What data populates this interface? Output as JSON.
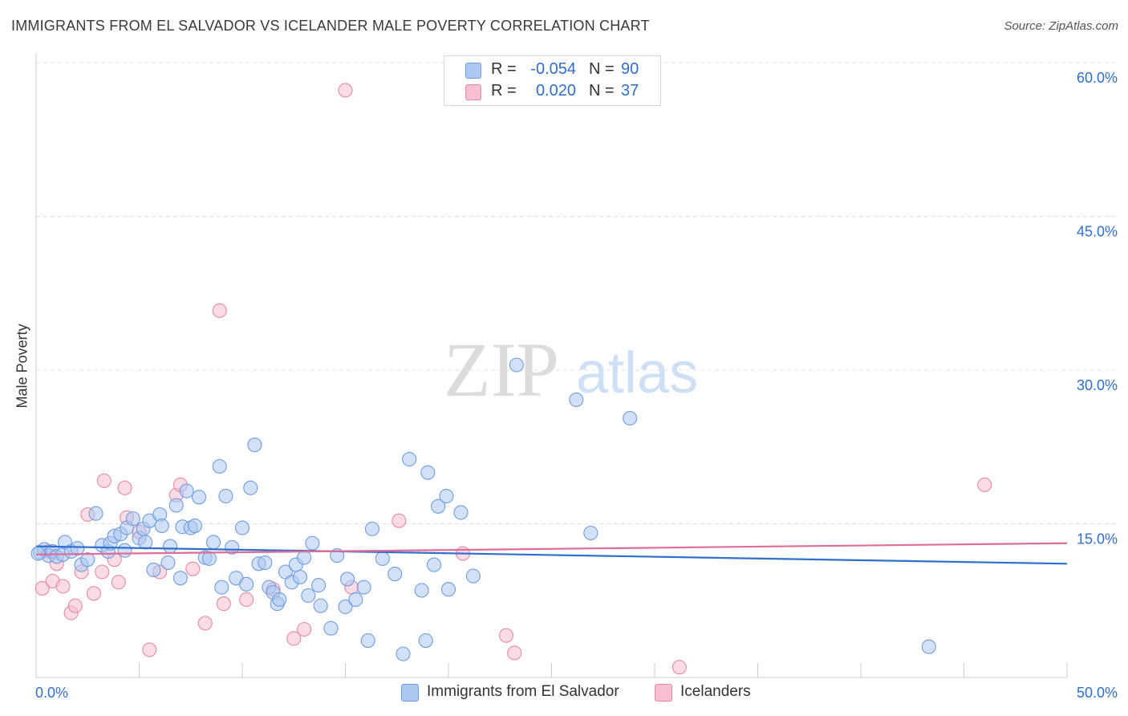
{
  "title": "IMMIGRANTS FROM EL SALVADOR VS ICELANDER MALE POVERTY CORRELATION CHART",
  "source": "Source: ZipAtlas.com",
  "watermark": {
    "zip": "ZIP",
    "atlas": "atlas"
  },
  "legend": {
    "r_label": "R =",
    "n_label": "N =",
    "series": [
      {
        "r": "-0.054",
        "n": "90",
        "fill": "#adc9f0",
        "stroke": "#6f9de0"
      },
      {
        "r": "0.020",
        "n": "37",
        "fill": "#f7bfd0",
        "stroke": "#e58aa8"
      }
    ]
  },
  "bottom_legend": [
    "Immigrants from El Salvador",
    "Icelanders"
  ],
  "chart_data": {
    "type": "scatter",
    "title": "IMMIGRANTS FROM EL SALVADOR VS ICELANDER MALE POVERTY CORRELATION CHART",
    "xlabel": "",
    "ylabel": "Male Poverty",
    "xlim": [
      0,
      50
    ],
    "ylim": [
      0,
      60
    ],
    "x_tick_labels": [
      "0.0%",
      "50.0%"
    ],
    "y_tick_labels": [
      "15.0%",
      "30.0%",
      "45.0%",
      "60.0%"
    ],
    "y_ticks": [
      15,
      30,
      45,
      60
    ],
    "grid": true,
    "colors": {
      "blue": "#2f6fd0",
      "pink": "#e06c97",
      "blue_fill": "#adc9f0",
      "pink_fill": "#f7bfd0"
    },
    "series": [
      {
        "name": "Immigrants from El Salvador",
        "trend": [
          [
            0,
            12.8
          ],
          [
            50,
            11.1
          ]
        ],
        "points": [
          [
            0.2,
            12.2
          ],
          [
            0.4,
            12.5
          ],
          [
            0.6,
            11.9
          ],
          [
            0.8,
            12.3
          ],
          [
            1.0,
            11.8
          ],
          [
            1.3,
            12.0
          ],
          [
            1.4,
            13.2
          ],
          [
            1.7,
            12.3
          ],
          [
            2.0,
            12.6
          ],
          [
            2.2,
            11.0
          ],
          [
            2.5,
            11.5
          ],
          [
            2.9,
            16.0
          ],
          [
            3.2,
            12.9
          ],
          [
            3.5,
            12.3
          ],
          [
            3.6,
            13.1
          ],
          [
            3.8,
            13.8
          ],
          [
            4.1,
            14.0
          ],
          [
            4.3,
            12.4
          ],
          [
            4.4,
            14.6
          ],
          [
            4.7,
            15.5
          ],
          [
            5.0,
            13.6
          ],
          [
            5.2,
            14.5
          ],
          [
            5.3,
            13.2
          ],
          [
            5.5,
            15.3
          ],
          [
            5.7,
            10.5
          ],
          [
            6.0,
            15.9
          ],
          [
            6.1,
            14.8
          ],
          [
            6.4,
            11.2
          ],
          [
            6.5,
            12.8
          ],
          [
            6.8,
            16.8
          ],
          [
            7.0,
            9.7
          ],
          [
            7.1,
            14.7
          ],
          [
            7.3,
            18.2
          ],
          [
            7.5,
            14.6
          ],
          [
            7.7,
            14.8
          ],
          [
            7.9,
            17.6
          ],
          [
            8.2,
            11.7
          ],
          [
            8.4,
            11.6
          ],
          [
            8.6,
            13.2
          ],
          [
            8.9,
            20.6
          ],
          [
            9.0,
            8.8
          ],
          [
            9.2,
            17.7
          ],
          [
            9.5,
            12.7
          ],
          [
            9.7,
            9.7
          ],
          [
            10.0,
            14.6
          ],
          [
            10.2,
            9.1
          ],
          [
            10.4,
            18.5
          ],
          [
            10.6,
            22.7
          ],
          [
            10.8,
            11.1
          ],
          [
            11.1,
            11.2
          ],
          [
            11.3,
            8.8
          ],
          [
            11.5,
            8.3
          ],
          [
            11.7,
            7.2
          ],
          [
            11.8,
            7.6
          ],
          [
            12.1,
            10.3
          ],
          [
            12.4,
            9.3
          ],
          [
            12.6,
            11.0
          ],
          [
            12.8,
            9.8
          ],
          [
            13.0,
            11.7
          ],
          [
            13.2,
            8.0
          ],
          [
            13.4,
            13.1
          ],
          [
            13.7,
            9.0
          ],
          [
            13.8,
            7.0
          ],
          [
            14.3,
            4.8
          ],
          [
            14.6,
            11.9
          ],
          [
            15.0,
            6.9
          ],
          [
            15.1,
            9.6
          ],
          [
            15.5,
            7.6
          ],
          [
            15.9,
            8.8
          ],
          [
            16.1,
            3.6
          ],
          [
            16.3,
            14.5
          ],
          [
            16.8,
            11.6
          ],
          [
            17.4,
            10.1
          ],
          [
            17.8,
            2.3
          ],
          [
            18.1,
            21.3
          ],
          [
            18.7,
            8.5
          ],
          [
            18.9,
            3.6
          ],
          [
            19.0,
            20.0
          ],
          [
            19.3,
            11.0
          ],
          [
            19.5,
            16.7
          ],
          [
            19.9,
            17.7
          ],
          [
            20.0,
            8.6
          ],
          [
            20.6,
            16.1
          ],
          [
            21.2,
            9.9
          ],
          [
            23.3,
            30.5
          ],
          [
            26.2,
            27.1
          ],
          [
            26.9,
            14.1
          ],
          [
            28.8,
            25.3
          ],
          [
            43.3,
            3.0
          ],
          [
            0.1,
            12.1
          ]
        ]
      },
      {
        "name": "Icelanders",
        "trend": [
          [
            0,
            12.0
          ],
          [
            50,
            13.1
          ]
        ],
        "points": [
          [
            0.3,
            8.7
          ],
          [
            0.6,
            12.3
          ],
          [
            0.8,
            9.4
          ],
          [
            1.0,
            11.1
          ],
          [
            1.3,
            8.9
          ],
          [
            1.7,
            6.3
          ],
          [
            1.9,
            7.0
          ],
          [
            2.2,
            10.3
          ],
          [
            2.5,
            15.9
          ],
          [
            2.8,
            8.2
          ],
          [
            3.2,
            10.3
          ],
          [
            3.3,
            19.2
          ],
          [
            3.8,
            11.5
          ],
          [
            4.0,
            9.3
          ],
          [
            4.3,
            18.5
          ],
          [
            4.4,
            15.6
          ],
          [
            5.0,
            14.2
          ],
          [
            5.5,
            2.7
          ],
          [
            6.0,
            10.3
          ],
          [
            6.8,
            17.8
          ],
          [
            7.0,
            18.8
          ],
          [
            7.6,
            10.6
          ],
          [
            8.2,
            5.3
          ],
          [
            9.1,
            7.2
          ],
          [
            8.9,
            35.8
          ],
          [
            10.2,
            7.6
          ],
          [
            11.5,
            8.6
          ],
          [
            12.5,
            3.8
          ],
          [
            13.0,
            4.7
          ],
          [
            15.3,
            8.8
          ],
          [
            17.6,
            15.3
          ],
          [
            20.7,
            12.1
          ],
          [
            22.8,
            4.1
          ],
          [
            23.2,
            2.4
          ],
          [
            31.2,
            1.0
          ],
          [
            46.0,
            18.8
          ],
          [
            15.0,
            57.3
          ]
        ]
      }
    ]
  }
}
